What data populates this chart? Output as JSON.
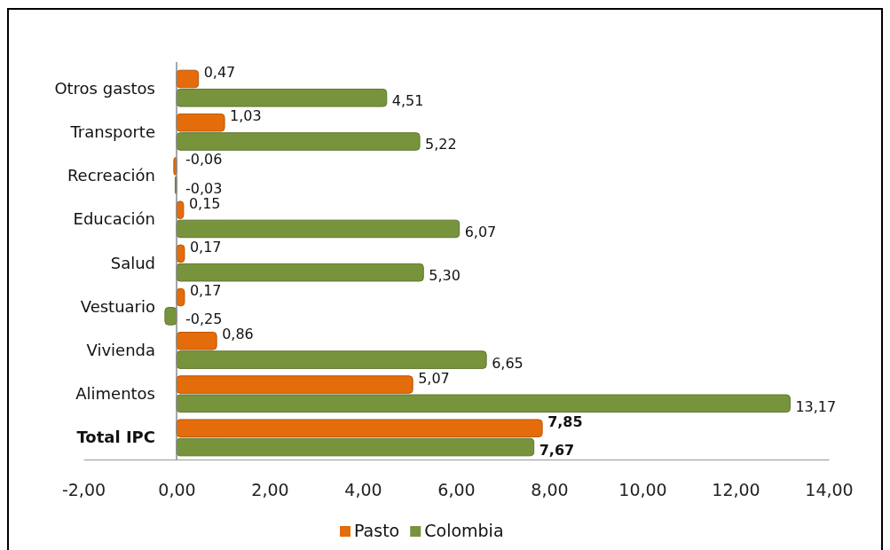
{
  "chart_data": {
    "type": "bar",
    "orientation": "horizontal",
    "categories": [
      "Otros gastos",
      "Transporte",
      "Recreación",
      "Educación",
      "Salud",
      "Vestuario",
      "Vivienda",
      "Alimentos",
      "Total IPC"
    ],
    "series": [
      {
        "name": "Pasto",
        "color": "#e46c0a",
        "values": [
          0.47,
          1.03,
          -0.06,
          0.15,
          0.17,
          0.17,
          0.86,
          5.07,
          7.85
        ],
        "value_labels": [
          "0,47",
          "1,03",
          "-0,06",
          "0,15",
          "0,17",
          "0,17",
          "0,86",
          "5,07",
          "7,85"
        ]
      },
      {
        "name": "Colombia",
        "color": "#77933c",
        "values": [
          4.51,
          5.22,
          -0.03,
          6.07,
          5.3,
          -0.25,
          6.65,
          13.17,
          7.67
        ],
        "value_labels": [
          "4,51",
          "5,22",
          "-0,03",
          "6,07",
          "5,30",
          "-0,25",
          "6,65",
          "13,17",
          "7,67"
        ]
      }
    ],
    "xlim": [
      -2,
      14
    ],
    "xticks": [
      {
        "value": -2,
        "label": "-2,00"
      },
      {
        "value": 0,
        "label": "0,00"
      },
      {
        "value": 2,
        "label": "2,00"
      },
      {
        "value": 4,
        "label": "4,00"
      },
      {
        "value": 6,
        "label": "6,00"
      },
      {
        "value": 8,
        "label": "8,00"
      },
      {
        "value": 10,
        "label": "10,00"
      },
      {
        "value": 12,
        "label": "12,00"
      },
      {
        "value": 14,
        "label": "14,00"
      }
    ],
    "grid": false,
    "legend": "bottom"
  }
}
